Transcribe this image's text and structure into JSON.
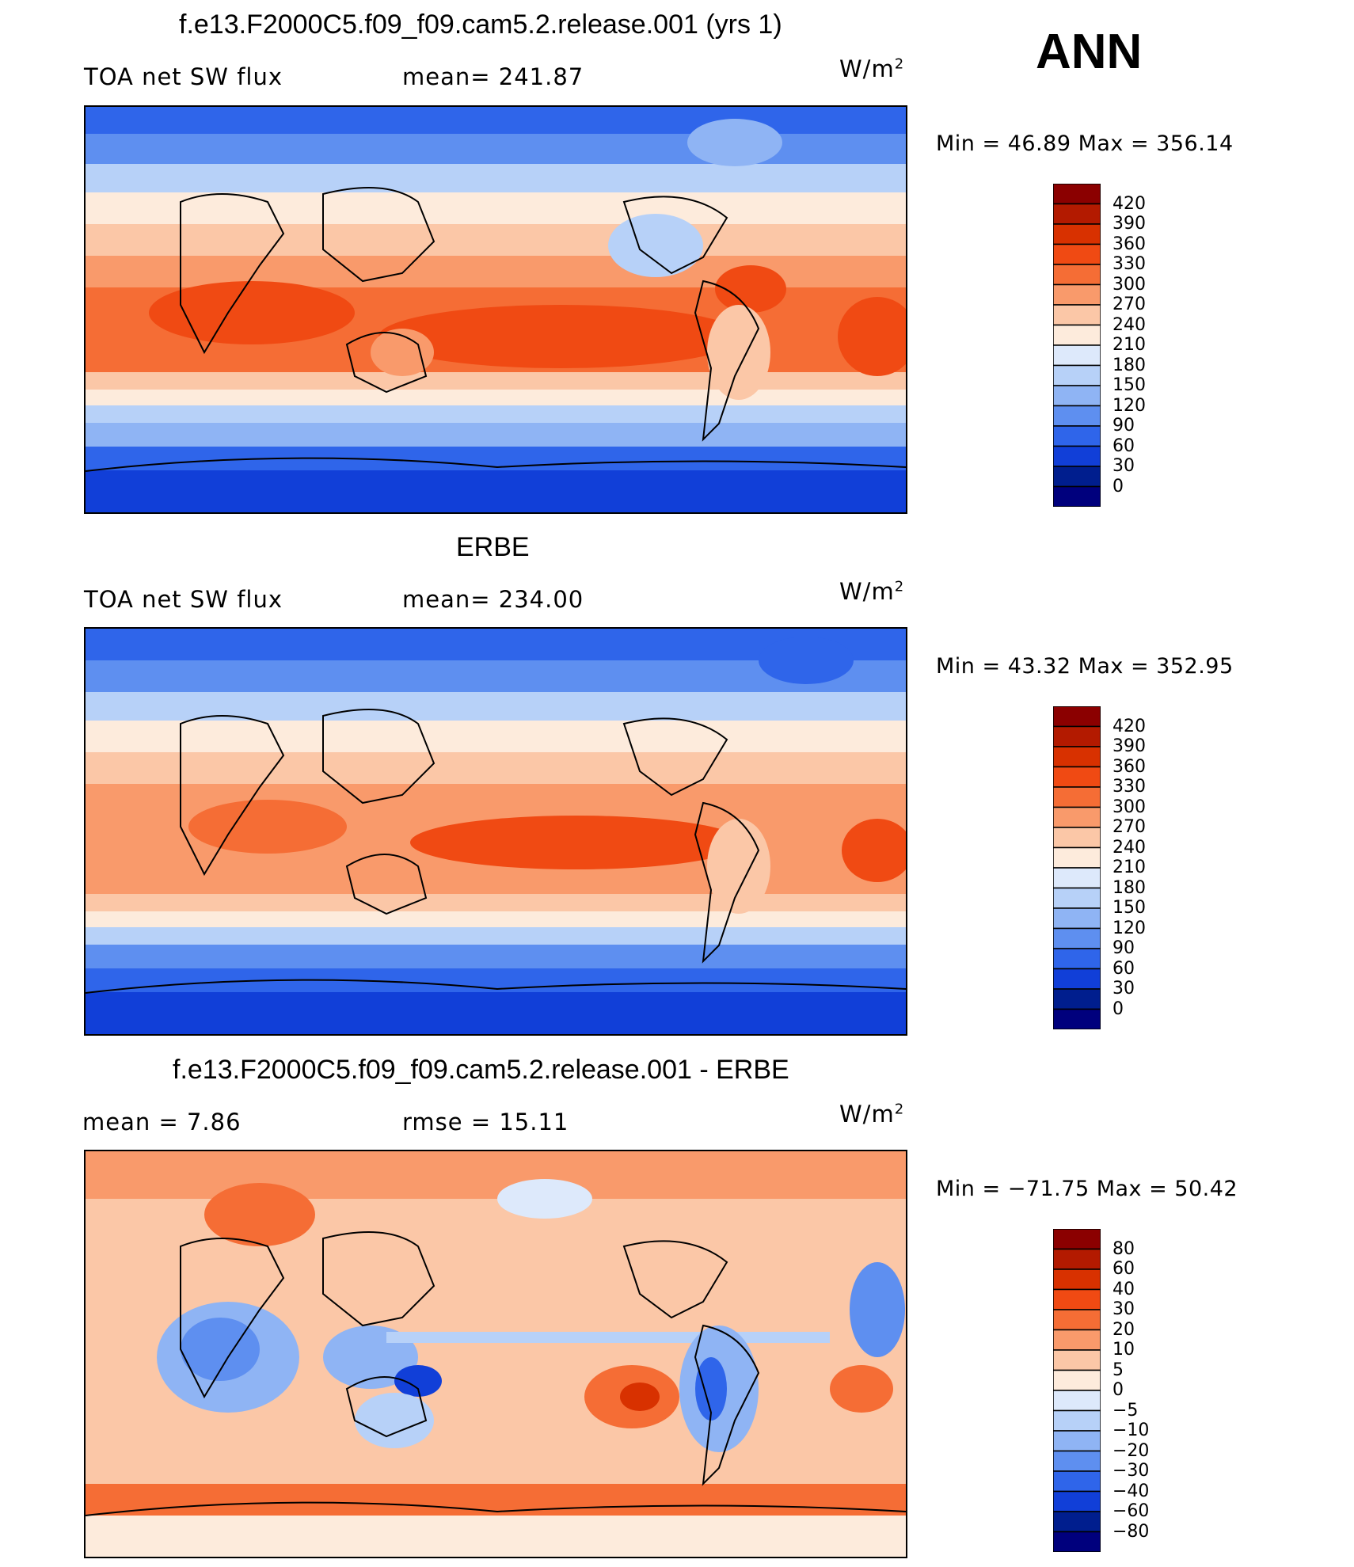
{
  "season": "ANN",
  "units_base": "W/m",
  "units_sup": "2",
  "panels": [
    {
      "title": "f.e13.F2000C5.f09_f09.cam5.2.release.001 (yrs 1)",
      "left_label": "TOA net SW flux",
      "center_label": "mean=  241.87",
      "stats": "Min  =    46.89  Max  =  356.14"
    },
    {
      "title": "ERBE",
      "left_label": "TOA net SW flux",
      "center_label": "mean=  234.00",
      "stats": "Min  =    43.32  Max  =  352.95"
    },
    {
      "title": "f.e13.F2000C5.f09_f09.cam5.2.release.001 - ERBE",
      "left_label": "mean  =      7.86",
      "center_label": "rmse  =    15.11",
      "stats": "Min  = −71.75  Max  =    50.42"
    }
  ],
  "chart_data": [
    {
      "type": "heatmap",
      "title": "f.e13.F2000C5.f09_f09.cam5.2.release.001 (yrs 1)",
      "variable": "TOA net SW flux",
      "units": "W/m2",
      "mean": 241.87,
      "min": 46.89,
      "max": 356.14,
      "colorbar_levels": [
        "420",
        "390",
        "360",
        "330",
        "300",
        "270",
        "240",
        "210",
        "180",
        "150",
        "120",
        "90",
        "60",
        "30",
        "0"
      ],
      "colorbar_colors": [
        "#8b0000",
        "#b31a00",
        "#d83100",
        "#f04a13",
        "#f56d35",
        "#f99a6b",
        "#fbc7a7",
        "#fdebdc",
        "#dde9fb",
        "#b7d1f8",
        "#8fb4f4",
        "#5e8ff0",
        "#2f65ea",
        "#113fd8",
        "#001e8e",
        "#00007d"
      ]
    },
    {
      "type": "heatmap",
      "title": "ERBE",
      "variable": "TOA net SW flux",
      "units": "W/m2",
      "mean": 234.0,
      "min": 43.32,
      "max": 352.95,
      "colorbar_levels": [
        "420",
        "390",
        "360",
        "330",
        "300",
        "270",
        "240",
        "210",
        "180",
        "150",
        "120",
        "90",
        "60",
        "30",
        "0"
      ],
      "colorbar_colors": [
        "#8b0000",
        "#b31a00",
        "#d83100",
        "#f04a13",
        "#f56d35",
        "#f99a6b",
        "#fbc7a7",
        "#fdebdc",
        "#dde9fb",
        "#b7d1f8",
        "#8fb4f4",
        "#5e8ff0",
        "#2f65ea",
        "#113fd8",
        "#001e8e",
        "#00007d"
      ]
    },
    {
      "type": "heatmap",
      "title": "f.e13.F2000C5.f09_f09.cam5.2.release.001 - ERBE",
      "units": "W/m2",
      "mean": 7.86,
      "rmse": 15.11,
      "min": -71.75,
      "max": 50.42,
      "colorbar_levels": [
        "80",
        "60",
        "40",
        "30",
        "20",
        "10",
        "5",
        "0",
        "−5",
        "−10",
        "−20",
        "−30",
        "−40",
        "−60",
        "−80"
      ],
      "colorbar_colors": [
        "#8b0000",
        "#b31a00",
        "#d83100",
        "#f04a13",
        "#f56d35",
        "#f99a6b",
        "#fbc7a7",
        "#fdebdc",
        "#dde9fb",
        "#b7d1f8",
        "#8fb4f4",
        "#5e8ff0",
        "#2f65ea",
        "#113fd8",
        "#001e8e",
        "#00007d"
      ]
    }
  ]
}
